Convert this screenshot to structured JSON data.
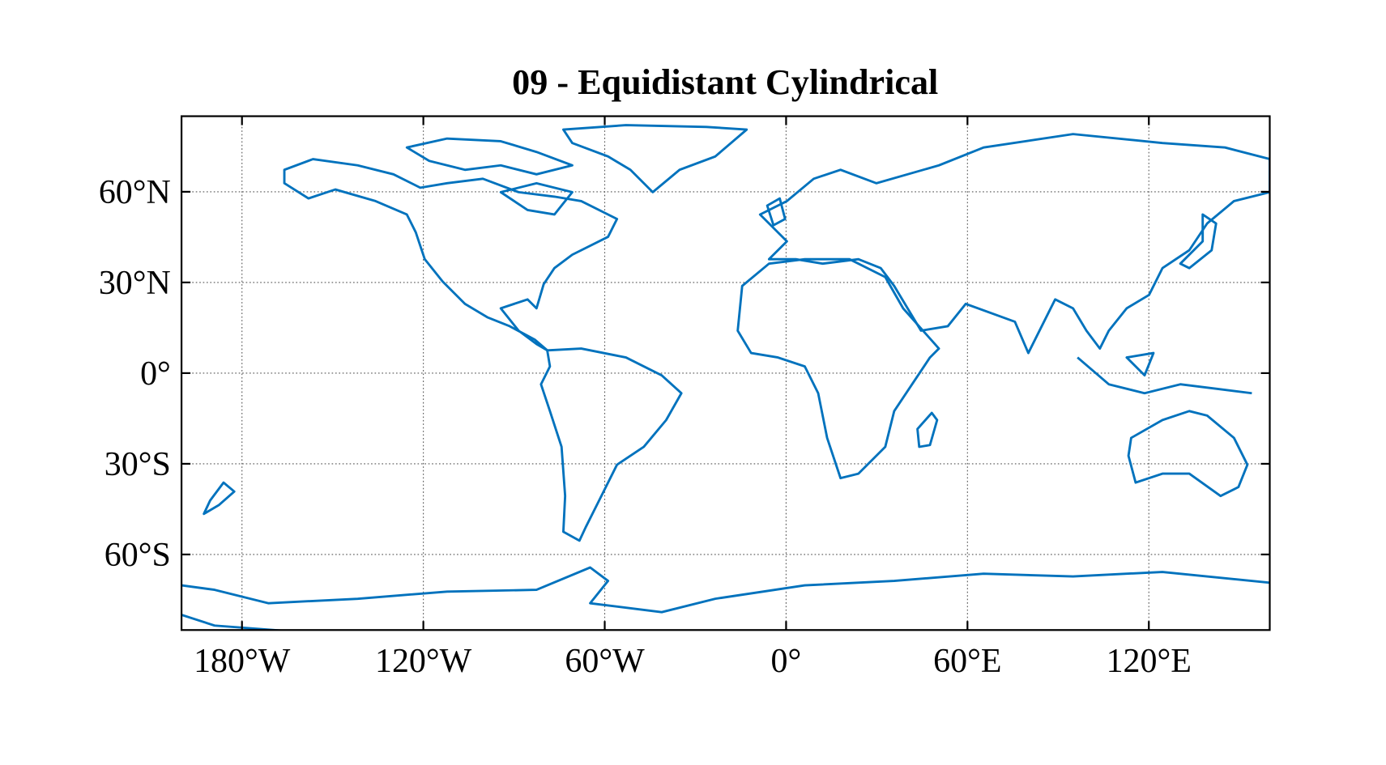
{
  "chart_data": {
    "type": "map",
    "title": "09 - Equidistant Cylindrical",
    "xlim": [
      -200,
      160
    ],
    "ylim": [
      -85,
      85
    ],
    "xticks": [
      {
        "value": -180,
        "label": "180°W"
      },
      {
        "value": -120,
        "label": "120°W"
      },
      {
        "value": -60,
        "label": "60°W"
      },
      {
        "value": 0,
        "label": "0°"
      },
      {
        "value": 60,
        "label": "60°E"
      },
      {
        "value": 120,
        "label": "120°E"
      }
    ],
    "yticks": [
      {
        "value": -60,
        "label": "60°S"
      },
      {
        "value": -30,
        "label": "30°S"
      },
      {
        "value": 0,
        "label": "0°"
      },
      {
        "value": 30,
        "label": "30°N"
      },
      {
        "value": 60,
        "label": "60°N"
      }
    ],
    "grid": true,
    "color": "#0072bd"
  }
}
